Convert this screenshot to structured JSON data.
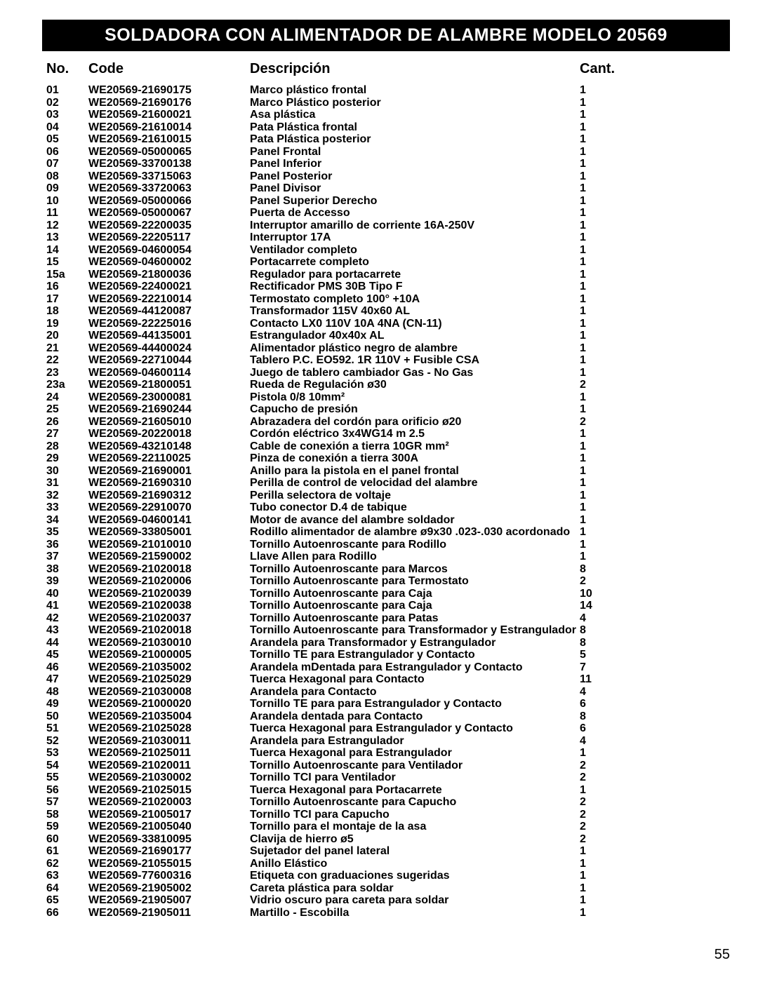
{
  "title": "SOLDADORA CON ALIMENTADOR DE ALAMBRE MODELO 20569",
  "headers": {
    "no": "No.",
    "code": "Code",
    "desc": "Descripción",
    "cant": "Cant."
  },
  "page_number": "55",
  "rows": [
    {
      "no": "01",
      "code": "WE20569-21690175",
      "desc": "Marco plástico frontal",
      "cant": "1"
    },
    {
      "no": "02",
      "code": "WE20569-21690176",
      "desc": "Marco Plástico posterior",
      "cant": "1"
    },
    {
      "no": "03",
      "code": "WE20569-21600021",
      "desc": "Asa plástica",
      "cant": "1"
    },
    {
      "no": "04",
      "code": "WE20569-21610014",
      "desc": "Pata Plástica frontal",
      "cant": "1"
    },
    {
      "no": "05",
      "code": "WE20569-21610015",
      "desc": "Pata Plástica posterior",
      "cant": "1"
    },
    {
      "no": "06",
      "code": "WE20569-05000065",
      "desc": "Panel Frontal",
      "cant": "1"
    },
    {
      "no": "07",
      "code": "WE20569-33700138",
      "desc": "Panel Inferior",
      "cant": "1"
    },
    {
      "no": "08",
      "code": "WE20569-33715063",
      "desc": "Panel Posterior",
      "cant": "1"
    },
    {
      "no": "09",
      "code": "WE20569-33720063",
      "desc": "Panel Divisor",
      "cant": "1"
    },
    {
      "no": "10",
      "code": "WE20569-05000066",
      "desc": "Panel Superior Derecho",
      "cant": "1"
    },
    {
      "no": "11",
      "code": "WE20569-05000067",
      "desc": "Puerta de Accesso",
      "cant": "1"
    },
    {
      "no": "12",
      "code": "WE20569-22200035",
      "desc": "Interruptor amarillo de corriente 16A-250V",
      "cant": "1"
    },
    {
      "no": "13",
      "code": "WE20569-22205117",
      "desc": "Interruptor 17A",
      "cant": "1"
    },
    {
      "no": "14",
      "code": "WE20569-04600054",
      "desc": "Ventilador completo",
      "cant": "1"
    },
    {
      "no": "15",
      "code": "WE20569-04600002",
      "desc": "Portacarrete completo",
      "cant": "1"
    },
    {
      "no": "15a",
      "code": "WE20569-21800036",
      "desc": "Regulador para portacarrete",
      "cant": "1"
    },
    {
      "no": "16",
      "code": "WE20569-22400021",
      "desc": "Rectificador PMS 30B Tipo F",
      "cant": "1"
    },
    {
      "no": "17",
      "code": "WE20569-22210014",
      "desc": "Termostato completo 100° +10A",
      "cant": "1"
    },
    {
      "no": "18",
      "code": "WE20569-44120087",
      "desc": "Transformador 115V 40x60 AL",
      "cant": "1"
    },
    {
      "no": "19",
      "code": "WE20569-22225016",
      "desc": "Contacto LX0 110V 10A 4NA (CN-11)",
      "cant": "1"
    },
    {
      "no": "20",
      "code": "WE20569-44135001",
      "desc": "Estrangulador 40x40x AL",
      "cant": "1"
    },
    {
      "no": "21",
      "code": "WE20569-44400024",
      "desc": "Alimentador plástico negro de alambre",
      "cant": "1"
    },
    {
      "no": "22",
      "code": "WE20569-22710044",
      "desc": "Tablero P.C. EO592. 1R 110V + Fusible CSA",
      "cant": "1"
    },
    {
      "no": "23",
      "code": "WE20569-04600114",
      "desc": "Juego de tablero cambiador Gas - No Gas",
      "cant": "1"
    },
    {
      "no": "23a",
      "code": "WE20569-21800051",
      "desc": "Rueda de Regulación ø30",
      "cant": "2"
    },
    {
      "no": "24",
      "code": "WE20569-23000081",
      "desc": "Pistola 0/8 10mm²",
      "cant": "1"
    },
    {
      "no": "25",
      "code": "WE20569-21690244",
      "desc": "Capucho de presión",
      "cant": "1"
    },
    {
      "no": "26",
      "code": "WE20569-21605010",
      "desc": "Abrazadera del cordón para orificio ø20",
      "cant": "2"
    },
    {
      "no": "27",
      "code": "WE20569-20220018",
      "desc": "Cordón eléctrico 3x4WG14 m 2.5",
      "cant": "1"
    },
    {
      "no": "28",
      "code": "WE20569-43210148",
      "desc": "Cable de conexión a tierra 10GR mm²",
      "cant": "1"
    },
    {
      "no": "29",
      "code": "WE20569-22110025",
      "desc": "Pinza de conexión a tierra 300A",
      "cant": "1"
    },
    {
      "no": "30",
      "code": "WE20569-21690001",
      "desc": "Anillo para la pistola en el panel frontal",
      "cant": "1"
    },
    {
      "no": "31",
      "code": "WE20569-21690310",
      "desc": "Perilla de control de velocidad del alambre",
      "cant": "1"
    },
    {
      "no": "32",
      "code": "WE20569-21690312",
      "desc": "Perilla selectora de voltaje",
      "cant": "1"
    },
    {
      "no": "33",
      "code": "WE20569-22910070",
      "desc": "Tubo conector D.4 de tabique",
      "cant": "1"
    },
    {
      "no": "34",
      "code": "WE20569-04600141",
      "desc": "Motor de avance del alambre soldador",
      "cant": "1"
    },
    {
      "no": "35",
      "code": "WE20569-33805001",
      "desc": "Rodillo alimentador de alambre ø9x30 .023-.030 acordonado",
      "cant": "1"
    },
    {
      "no": "36",
      "code": "WE20569-21010010",
      "desc": "Tornillo Autoenroscante para Rodillo",
      "cant": "1"
    },
    {
      "no": "37",
      "code": "WE20569-21590002",
      "desc": "Llave Allen para Rodillo",
      "cant": "1"
    },
    {
      "no": "38",
      "code": "WE20569-21020018",
      "desc": "Tornillo Autoenroscante para Marcos",
      "cant": "8"
    },
    {
      "no": "39",
      "code": "WE20569-21020006",
      "desc": "Tornillo Autoenroscante para Termostato",
      "cant": "2"
    },
    {
      "no": "40",
      "code": "WE20569-21020039",
      "desc": "Tornillo Autoenroscante para Caja",
      "cant": "10"
    },
    {
      "no": "41",
      "code": "WE20569-21020038",
      "desc": "Tornillo Autoenroscante para Caja",
      "cant": "14"
    },
    {
      "no": "42",
      "code": "WE20569-21020037",
      "desc": "Tornillo Autoenroscante para Patas",
      "cant": "4"
    },
    {
      "no": "43",
      "code": "WE20569-21020018",
      "desc": "Tornillo Autoenroscante para Transformador y Estrangulador",
      "cant": "8"
    },
    {
      "no": "44",
      "code": "WE20569-21030010",
      "desc": "Arandela para Transformador y Estrangulador",
      "cant": "8"
    },
    {
      "no": "45",
      "code": "WE20569-21000005",
      "desc": "Tornillo TE para Estrangulador y Contacto",
      "cant": "5"
    },
    {
      "no": "46",
      "code": "WE20569-21035002",
      "desc": "Arandela mDentada para Estrangulador y Contacto",
      "cant": "7"
    },
    {
      "no": "47",
      "code": "WE20569-21025029",
      "desc": "Tuerca Hexagonal para Contacto",
      "cant": "11"
    },
    {
      "no": "48",
      "code": "WE20569-21030008",
      "desc": "Arandela para Contacto",
      "cant": "4"
    },
    {
      "no": "49",
      "code": "WE20569-21000020",
      "desc": "Tornillo TE para para Estrangulador y Contacto",
      "cant": "6"
    },
    {
      "no": "50",
      "code": "WE20569-21035004",
      "desc": "Arandela dentada para Contacto",
      "cant": "8"
    },
    {
      "no": "51",
      "code": "WE20569-21025028",
      "desc": "Tuerca Hexagonal para Estrangulador y Contacto",
      "cant": "6"
    },
    {
      "no": "52",
      "code": "WE20569-21030011",
      "desc": "Arandela para Estrangulador",
      "cant": "4"
    },
    {
      "no": "53",
      "code": "WE20569-21025011",
      "desc": "Tuerca Hexagonal para Estrangulador",
      "cant": "1"
    },
    {
      "no": "54",
      "code": "WE20569-21020011",
      "desc": "Tornillo Autoenroscante para Ventilador",
      "cant": "2"
    },
    {
      "no": "55",
      "code": "WE20569-21030002",
      "desc": "Tornillo TCI para Ventilador",
      "cant": "2"
    },
    {
      "no": "56",
      "code": "WE20569-21025015",
      "desc": "Tuerca Hexagonal para Portacarrete",
      "cant": "1"
    },
    {
      "no": "57",
      "code": "WE20569-21020003",
      "desc": "Tornillo Autoenroscante para Capucho",
      "cant": "2"
    },
    {
      "no": "58",
      "code": "WE20569-21005017",
      "desc": "Tornillo TCI para Capucho",
      "cant": "2"
    },
    {
      "no": "59",
      "code": "WE20569-21005040",
      "desc": "Tornillo para el montaje de la asa",
      "cant": "2"
    },
    {
      "no": "60",
      "code": "WE20569-33810095",
      "desc": "Clavija de hierro ø5",
      "cant": "2"
    },
    {
      "no": "61",
      "code": "WE20569-21690177",
      "desc": "Sujetador del panel lateral",
      "cant": "1"
    },
    {
      "no": "62",
      "code": "WE20569-21055015",
      "desc": "Anillo Elástico",
      "cant": "1"
    },
    {
      "no": "63",
      "code": "WE20569-77600316",
      "desc": "Etiqueta con graduaciones sugeridas",
      "cant": "1"
    },
    {
      "no": "64",
      "code": "WE20569-21905002",
      "desc": "Careta plástica para soldar",
      "cant": "1"
    },
    {
      "no": "65",
      "code": "WE20569-21905007",
      "desc": "Vidrio oscuro para careta para soldar",
      "cant": "1"
    },
    {
      "no": "66",
      "code": "WE20569-21905011",
      "desc": "Martillo - Escobilla",
      "cant": "1"
    }
  ]
}
